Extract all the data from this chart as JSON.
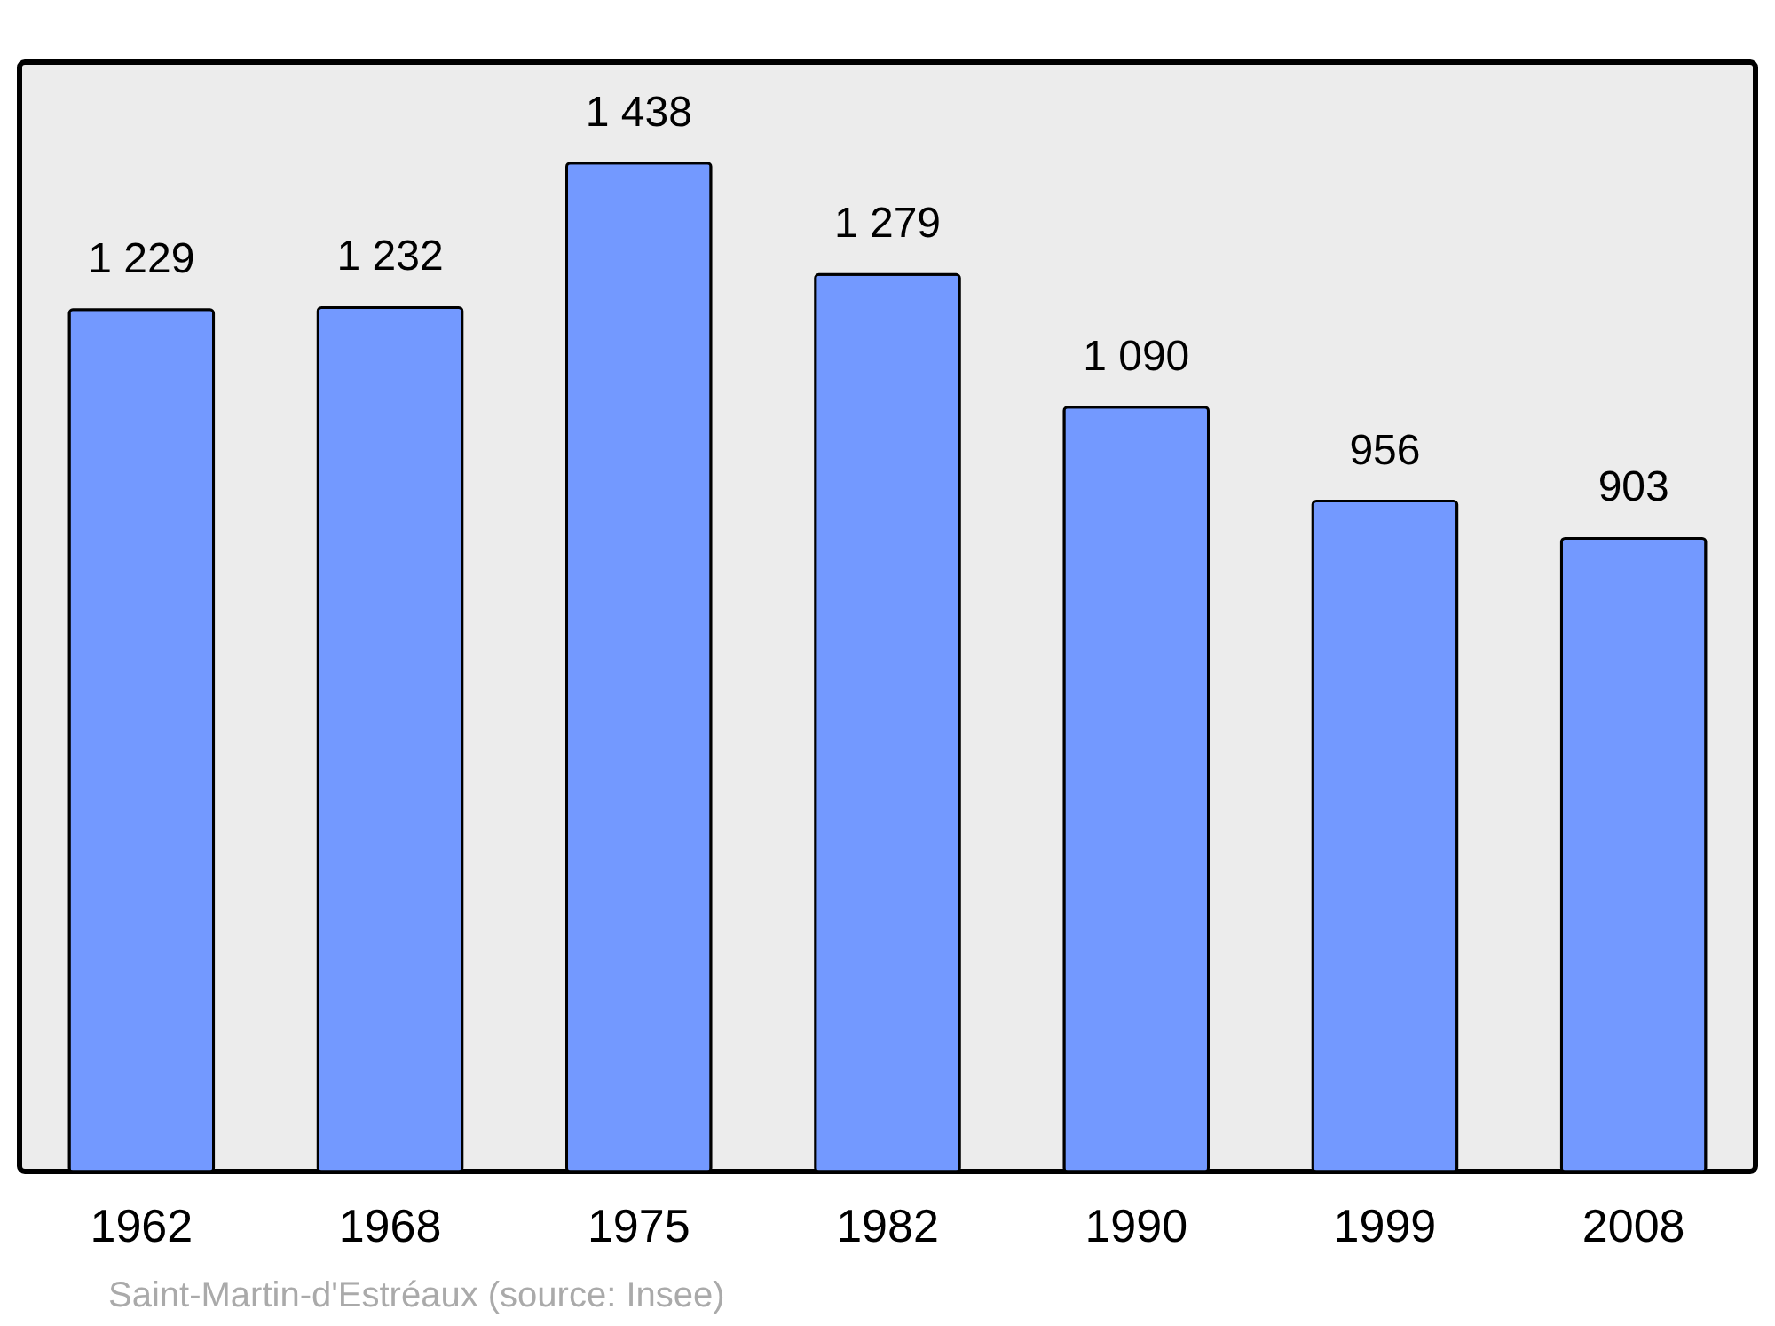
{
  "chart_data": {
    "type": "bar",
    "categories": [
      "1962",
      "1968",
      "1975",
      "1982",
      "1990",
      "1999",
      "2008"
    ],
    "values": [
      1229,
      1232,
      1438,
      1279,
      1090,
      956,
      903
    ],
    "value_labels": [
      "1 229",
      "1 232",
      "1 438",
      "1 279",
      "1 090",
      "956",
      "903"
    ],
    "color": "#7399ff",
    "annotations": [
      "Saint-Martin-d'Estréaux    (source: Insee)"
    ]
  }
}
